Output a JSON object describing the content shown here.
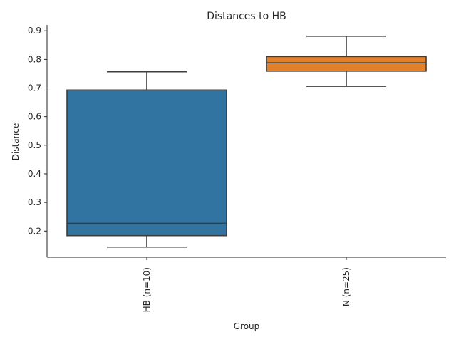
{
  "chart_data": {
    "type": "box",
    "title": "Distances to HB",
    "xlabel": "Group",
    "ylabel": "Distance",
    "categories": [
      "HB (n=10)",
      "N (n=25)"
    ],
    "boxes": [
      {
        "category": "HB (n=10)",
        "whisker_low": 0.144,
        "q1": 0.184,
        "median": 0.227,
        "q3": 0.693,
        "whisker_high": 0.757,
        "color": "#3274a1"
      },
      {
        "category": "N (n=25)",
        "whisker_low": 0.706,
        "q1": 0.759,
        "median": 0.788,
        "q3": 0.81,
        "whisker_high": 0.881,
        "color": "#e1812c"
      }
    ],
    "yticks": [
      0.2,
      0.3,
      0.4,
      0.5,
      0.6,
      0.7,
      0.8,
      0.9
    ],
    "ylim": [
      0.1085,
      0.9205
    ],
    "grid": false,
    "legend": "none"
  }
}
